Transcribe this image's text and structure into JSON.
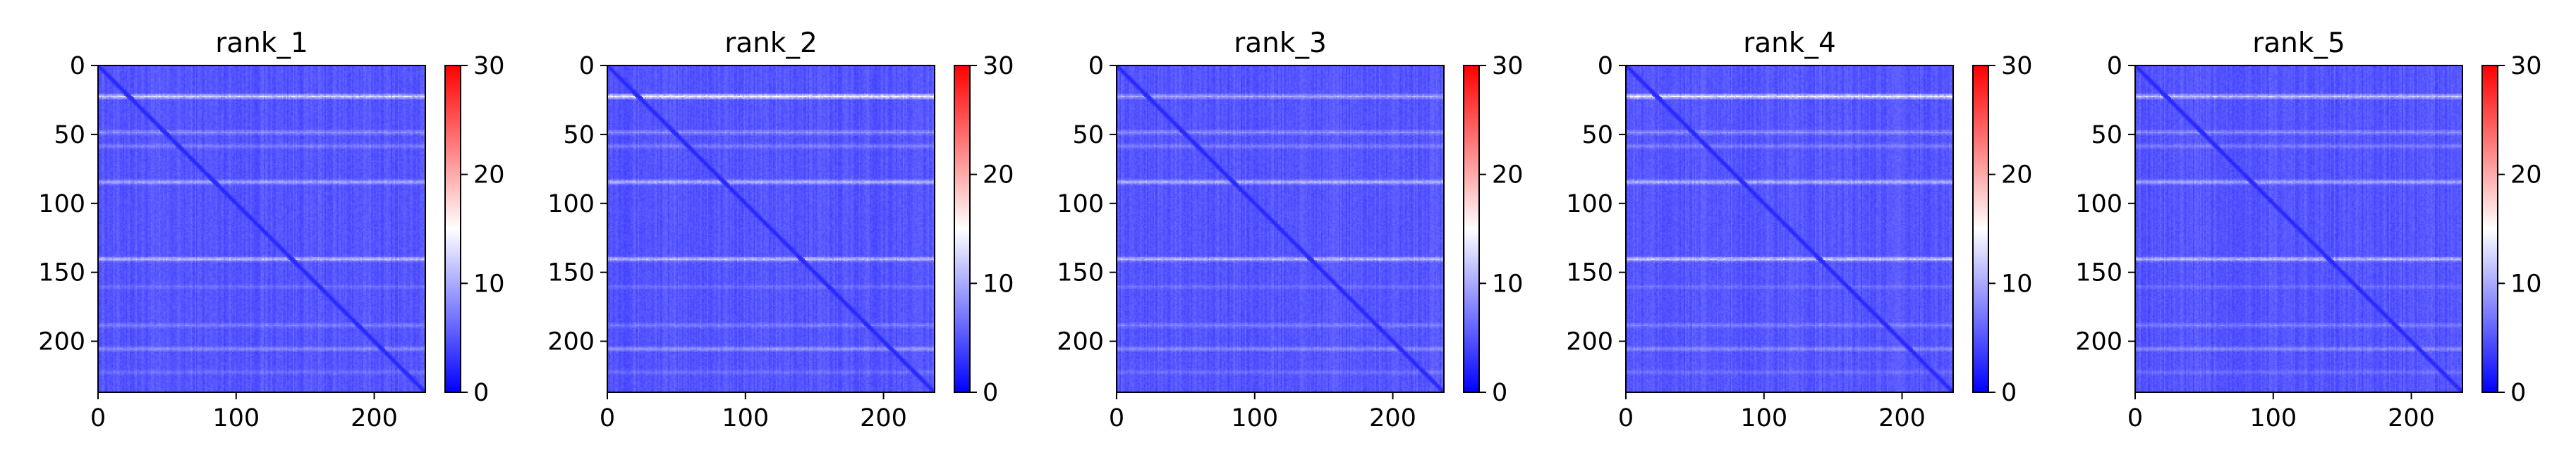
{
  "chart_data": [
    {
      "type": "heatmap",
      "title": "rank_1",
      "x_ticks": [
        0,
        100,
        200
      ],
      "y_ticks": [
        0,
        50,
        100,
        150,
        200
      ],
      "xlim": [
        0,
        237
      ],
      "ylim": [
        237,
        0
      ],
      "colorbar": {
        "min": 0,
        "max": 30,
        "ticks": [
          0,
          10,
          20,
          30
        ],
        "colormap": [
          "#0000ff",
          "#ffffff",
          "#ff0000"
        ]
      },
      "n": 237,
      "diagonal_value": 2,
      "background_value": 5,
      "bright_rows": [
        22,
        48,
        58,
        84,
        140,
        160,
        188,
        205,
        222
      ],
      "bright_row_values": [
        14,
        9,
        8,
        11,
        12,
        7,
        8,
        9,
        7
      ]
    },
    {
      "type": "heatmap",
      "title": "rank_2",
      "x_ticks": [
        0,
        100,
        200
      ],
      "y_ticks": [
        0,
        50,
        100,
        150,
        200
      ],
      "xlim": [
        0,
        237
      ],
      "ylim": [
        237,
        0
      ],
      "colorbar": {
        "min": 0,
        "max": 30,
        "ticks": [
          0,
          10,
          20,
          30
        ],
        "colormap": [
          "#0000ff",
          "#ffffff",
          "#ff0000"
        ]
      },
      "n": 237,
      "diagonal_value": 2,
      "background_value": 5,
      "bright_rows": [
        22,
        48,
        58,
        84,
        140,
        160,
        188,
        205,
        222
      ],
      "bright_row_values": [
        17,
        9,
        8,
        12,
        12,
        7,
        8,
        10,
        7
      ]
    },
    {
      "type": "heatmap",
      "title": "rank_3",
      "x_ticks": [
        0,
        100,
        200
      ],
      "y_ticks": [
        0,
        50,
        100,
        150,
        200
      ],
      "xlim": [
        0,
        237
      ],
      "ylim": [
        237,
        0
      ],
      "colorbar": {
        "min": 0,
        "max": 30,
        "ticks": [
          0,
          10,
          20,
          30
        ],
        "colormap": [
          "#0000ff",
          "#ffffff",
          "#ff0000"
        ]
      },
      "n": 237,
      "diagonal_value": 2,
      "background_value": 5,
      "bright_rows": [
        22,
        48,
        58,
        84,
        140,
        160,
        188,
        205,
        222
      ],
      "bright_row_values": [
        11,
        9,
        8,
        12,
        12,
        7,
        8,
        9,
        7
      ]
    },
    {
      "type": "heatmap",
      "title": "rank_4",
      "x_ticks": [
        0,
        100,
        200
      ],
      "y_ticks": [
        0,
        50,
        100,
        150,
        200
      ],
      "xlim": [
        0,
        237
      ],
      "ylim": [
        237,
        0
      ],
      "colorbar": {
        "min": 0,
        "max": 30,
        "ticks": [
          0,
          10,
          20,
          30
        ],
        "colormap": [
          "#0000ff",
          "#ffffff",
          "#ff0000"
        ]
      },
      "n": 237,
      "diagonal_value": 2,
      "background_value": 5,
      "bright_rows": [
        22,
        48,
        58,
        84,
        140,
        160,
        188,
        205,
        222
      ],
      "bright_row_values": [
        16,
        9,
        8,
        12,
        13,
        7,
        8,
        9,
        7
      ]
    },
    {
      "type": "heatmap",
      "title": "rank_5",
      "x_ticks": [
        0,
        100,
        200
      ],
      "y_ticks": [
        0,
        50,
        100,
        150,
        200
      ],
      "xlim": [
        0,
        237
      ],
      "ylim": [
        237,
        0
      ],
      "colorbar": {
        "min": 0,
        "max": 30,
        "ticks": [
          0,
          10,
          20,
          30
        ],
        "colormap": [
          "#0000ff",
          "#ffffff",
          "#ff0000"
        ]
      },
      "n": 237,
      "diagonal_value": 2,
      "background_value": 5,
      "bright_rows": [
        22,
        48,
        58,
        84,
        140,
        160,
        188,
        205,
        222
      ],
      "bright_row_values": [
        13,
        9,
        8,
        11,
        12,
        7,
        8,
        9,
        7
      ]
    }
  ]
}
